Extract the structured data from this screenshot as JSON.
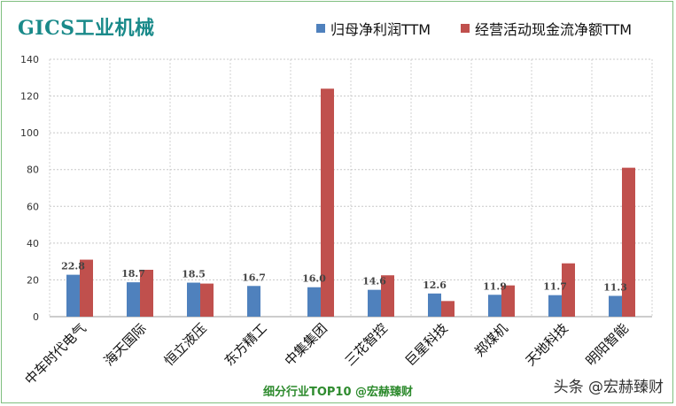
{
  "chart_data": {
    "type": "bar",
    "title": "GICS工业机械",
    "categories": [
      "中车时代电气",
      "海天国际",
      "恒立液压",
      "东方精工",
      "中集集团",
      "三花智控",
      "巨星科技",
      "郑煤机",
      "天地科技",
      "明阳智能"
    ],
    "series": [
      {
        "name": "归母净利润TTM",
        "color": "#4f81bd",
        "values": [
          22.8,
          18.7,
          18.5,
          16.7,
          16.0,
          14.6,
          12.6,
          11.9,
          11.7,
          11.3
        ],
        "labels": [
          "22.8",
          "18.7",
          "18.5",
          "16.7",
          "16.0",
          "14.6",
          "12.6",
          "11.9",
          "11.7",
          "11.3"
        ]
      },
      {
        "name": "经营活动现金流净额TTM",
        "color": "#c0504d",
        "values": [
          31,
          25.5,
          18,
          0,
          124,
          22.5,
          8.5,
          17,
          29,
          81
        ]
      }
    ],
    "ylim": [
      0,
      140
    ],
    "yticks": [
      "0",
      "20",
      "40",
      "60",
      "80",
      "100",
      "120",
      "140"
    ],
    "grid": true,
    "legend_position": "top-right"
  },
  "footer": "细分行业TOP10 @宏赫臻财",
  "watermark": "头条 @宏赫臻财"
}
